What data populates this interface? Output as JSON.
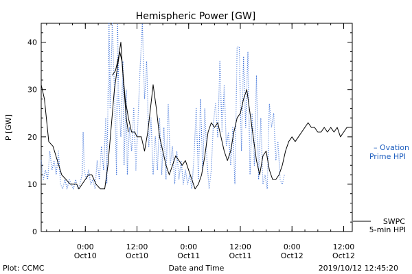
{
  "chart_data": {
    "type": "line",
    "title": "Hemispheric Power [GW]",
    "xlabel": "Date and Time",
    "ylabel": "P [GW]",
    "ylim": [
      0,
      44
    ],
    "xlim": [
      "2019-10-09T13:45",
      "2019-10-12T14:00"
    ],
    "yticks": [
      0,
      10,
      20,
      30,
      40
    ],
    "xticks": [
      {
        "t": "2019-10-10T00:00",
        "line1": "0:00",
        "line2": "Oct10"
      },
      {
        "t": "2019-10-10T12:00",
        "line1": "12:00",
        "line2": "Oct10"
      },
      {
        "t": "2019-10-11T00:00",
        "line1": "0:00",
        "line2": "Oct11"
      },
      {
        "t": "2019-10-11T12:00",
        "line1": "12:00",
        "line2": "Oct11"
      },
      {
        "t": "2019-10-12T00:00",
        "line1": "0:00",
        "line2": "Oct12"
      },
      {
        "t": "2019-10-12T12:00",
        "line1": "12:00",
        "line2": "Oct12"
      }
    ],
    "grid": false,
    "legend_position": "right",
    "series": [
      {
        "name": "SWPC 5-min HPI",
        "color": "#000000",
        "style": "solid",
        "points": [
          [
            "2019-10-09T13:45",
            31
          ],
          [
            "2019-10-09T14:30",
            28
          ],
          [
            "2019-10-09T15:30",
            19
          ],
          [
            "2019-10-09T16:30",
            18
          ],
          [
            "2019-10-09T17:30",
            15
          ],
          [
            "2019-10-09T18:30",
            12
          ],
          [
            "2019-10-09T19:30",
            11
          ],
          [
            "2019-10-09T20:30",
            10
          ],
          [
            "2019-10-09T22:00",
            10
          ],
          [
            "2019-10-09T22:30",
            9
          ],
          [
            "2019-10-09T23:15",
            10
          ],
          [
            "2019-10-10T00:00",
            11
          ],
          [
            "2019-10-10T00:45",
            12
          ],
          [
            "2019-10-10T01:30",
            12
          ],
          [
            "2019-10-10T02:30",
            10
          ],
          [
            "2019-10-10T03:30",
            9
          ],
          [
            "2019-10-10T04:30",
            9
          ],
          [
            "2019-10-10T05:15",
            14
          ],
          [
            "2019-10-10T06:00",
            22
          ],
          [
            "2019-10-10T06:45",
            30
          ],
          [
            "2019-10-10T07:30",
            35
          ],
          [
            "2019-10-10T08:00",
            38
          ],
          [
            "2019-10-10T08:30",
            36
          ],
          [
            "2019-10-10T09:15",
            28
          ],
          [
            "2019-10-10T10:00",
            24
          ],
          [
            "2019-10-10T10:45",
            21
          ],
          [
            "2019-10-10T11:30",
            21
          ],
          [
            "2019-10-10T12:00",
            20
          ],
          [
            "2019-10-10T13:00",
            20
          ],
          [
            "2019-10-10T13:45",
            17
          ],
          [
            "2019-10-10T14:30",
            21
          ],
          [
            "2019-10-10T15:15",
            27
          ],
          [
            "2019-10-10T15:45",
            31
          ],
          [
            "2019-10-10T16:30",
            26
          ],
          [
            "2019-10-10T17:15",
            20
          ],
          [
            "2019-10-10T18:00",
            17
          ],
          [
            "2019-10-10T18:45",
            14
          ],
          [
            "2019-10-10T19:30",
            12
          ],
          [
            "2019-10-10T20:15",
            14
          ],
          [
            "2019-10-10T21:00",
            16
          ],
          [
            "2019-10-10T21:45",
            15
          ],
          [
            "2019-10-10T22:30",
            14
          ],
          [
            "2019-10-10T23:15",
            15
          ],
          [
            "2019-10-11T00:00",
            13
          ],
          [
            "2019-10-11T00:45",
            11
          ],
          [
            "2019-10-11T01:30",
            9
          ],
          [
            "2019-10-11T02:15",
            10
          ],
          [
            "2019-10-11T03:00",
            12
          ],
          [
            "2019-10-11T03:45",
            16
          ],
          [
            "2019-10-11T04:30",
            21
          ],
          [
            "2019-10-11T05:15",
            23
          ],
          [
            "2019-10-11T06:00",
            22
          ],
          [
            "2019-10-11T06:45",
            23
          ],
          [
            "2019-10-11T07:30",
            20
          ],
          [
            "2019-10-11T08:15",
            17
          ],
          [
            "2019-10-11T09:00",
            15
          ],
          [
            "2019-10-11T09:45",
            17
          ],
          [
            "2019-10-11T10:30",
            21
          ],
          [
            "2019-10-11T11:15",
            24
          ],
          [
            "2019-10-11T12:00",
            25
          ],
          [
            "2019-10-11T12:45",
            28
          ],
          [
            "2019-10-11T13:30",
            30
          ],
          [
            "2019-10-11T14:15",
            25
          ],
          [
            "2019-10-11T15:00",
            20
          ],
          [
            "2019-10-11T15:45",
            15
          ],
          [
            "2019-10-11T16:30",
            12
          ],
          [
            "2019-10-11T17:15",
            16
          ],
          [
            "2019-10-11T18:00",
            17
          ],
          [
            "2019-10-11T18:45",
            13
          ],
          [
            "2019-10-11T19:30",
            11
          ],
          [
            "2019-10-11T20:15",
            11
          ],
          [
            "2019-10-11T21:00",
            12
          ],
          [
            "2019-10-11T21:45",
            14
          ],
          [
            "2019-10-11T22:30",
            17
          ],
          [
            "2019-10-11T23:15",
            19
          ],
          [
            "2019-10-12T00:00",
            20
          ],
          [
            "2019-10-12T00:45",
            19
          ],
          [
            "2019-10-12T01:30",
            20
          ],
          [
            "2019-10-12T02:15",
            21
          ],
          [
            "2019-10-12T03:00",
            22
          ],
          [
            "2019-10-12T03:45",
            23
          ],
          [
            "2019-10-12T04:30",
            22
          ],
          [
            "2019-10-12T05:15",
            22
          ],
          [
            "2019-10-12T06:00",
            21
          ],
          [
            "2019-10-12T06:45",
            21
          ],
          [
            "2019-10-12T07:30",
            22
          ],
          [
            "2019-10-12T08:15",
            21
          ],
          [
            "2019-10-12T09:00",
            22
          ],
          [
            "2019-10-12T09:45",
            21
          ],
          [
            "2019-10-12T10:30",
            22
          ],
          [
            "2019-10-12T11:15",
            20
          ],
          [
            "2019-10-12T12:00",
            21
          ],
          [
            "2019-10-12T12:45",
            22
          ],
          [
            "2019-10-12T13:30",
            22
          ]
        ]
      },
      {
        "name": "SWPC 5-min HPI (overlap segment)",
        "color": "#000000",
        "style": "solid",
        "points": [
          [
            "2019-10-10T06:15",
            33
          ],
          [
            "2019-10-10T07:00",
            34
          ],
          [
            "2019-10-10T07:45",
            37
          ],
          [
            "2019-10-10T08:15",
            40
          ],
          [
            "2019-10-10T08:45",
            33
          ],
          [
            "2019-10-10T09:30",
            24
          ],
          [
            "2019-10-10T10:00",
            21
          ]
        ]
      },
      {
        "name": "Ovation Prime HPI",
        "color": "#3a6fd8",
        "style": "dotted",
        "points": [
          [
            "2019-10-09T13:45",
            15
          ],
          [
            "2019-10-09T14:15",
            11
          ],
          [
            "2019-10-09T14:45",
            13
          ],
          [
            "2019-10-09T15:15",
            11
          ],
          [
            "2019-10-09T15:45",
            17
          ],
          [
            "2019-10-09T16:15",
            13
          ],
          [
            "2019-10-09T16:45",
            15
          ],
          [
            "2019-10-09T17:15",
            12
          ],
          [
            "2019-10-09T17:45",
            17
          ],
          [
            "2019-10-09T18:15",
            10
          ],
          [
            "2019-10-09T18:45",
            9
          ],
          [
            "2019-10-09T19:15",
            11
          ],
          [
            "2019-10-09T19:45",
            9
          ],
          [
            "2019-10-09T20:15",
            11
          ],
          [
            "2019-10-09T20:45",
            10
          ],
          [
            "2019-10-09T21:15",
            9
          ],
          [
            "2019-10-09T21:45",
            11
          ],
          [
            "2019-10-09T22:15",
            9
          ],
          [
            "2019-10-09T22:45",
            10
          ],
          [
            "2019-10-09T23:15",
            12
          ],
          [
            "2019-10-09T23:30",
            21
          ],
          [
            "2019-10-09T23:45",
            13
          ],
          [
            "2019-10-10T00:15",
            11
          ],
          [
            "2019-10-10T00:45",
            13
          ],
          [
            "2019-10-10T01:15",
            10
          ],
          [
            "2019-10-10T01:45",
            11
          ],
          [
            "2019-10-10T02:15",
            9
          ],
          [
            "2019-10-10T02:45",
            15
          ],
          [
            "2019-10-10T03:15",
            11
          ],
          [
            "2019-10-10T03:45",
            18
          ],
          [
            "2019-10-10T04:15",
            13
          ],
          [
            "2019-10-10T04:45",
            24
          ],
          [
            "2019-10-10T05:00",
            10
          ],
          [
            "2019-10-10T05:30",
            44
          ],
          [
            "2019-10-10T05:45",
            26
          ],
          [
            "2019-10-10T06:15",
            44
          ],
          [
            "2019-10-10T06:45",
            30
          ],
          [
            "2019-10-10T07:15",
            12
          ],
          [
            "2019-10-10T07:30",
            44
          ],
          [
            "2019-10-10T07:45",
            28
          ],
          [
            "2019-10-10T08:15",
            20
          ],
          [
            "2019-10-10T08:45",
            36
          ],
          [
            "2019-10-10T09:00",
            14
          ],
          [
            "2019-10-10T09:30",
            30
          ],
          [
            "2019-10-10T09:45",
            12
          ],
          [
            "2019-10-10T10:15",
            22
          ],
          [
            "2019-10-10T10:45",
            17
          ],
          [
            "2019-10-10T11:15",
            26
          ],
          [
            "2019-10-10T11:45",
            13
          ],
          [
            "2019-10-10T12:15",
            24
          ],
          [
            "2019-10-10T12:45",
            35
          ],
          [
            "2019-10-10T13:15",
            44
          ],
          [
            "2019-10-10T13:45",
            28
          ],
          [
            "2019-10-10T14:15",
            36
          ],
          [
            "2019-10-10T14:45",
            18
          ],
          [
            "2019-10-10T15:15",
            24
          ],
          [
            "2019-10-10T15:45",
            12
          ],
          [
            "2019-10-10T16:15",
            20
          ],
          [
            "2019-10-10T16:45",
            13
          ],
          [
            "2019-10-10T17:15",
            24
          ],
          [
            "2019-10-10T17:45",
            12
          ],
          [
            "2019-10-10T18:15",
            22
          ],
          [
            "2019-10-10T18:45",
            11
          ],
          [
            "2019-10-10T19:15",
            27
          ],
          [
            "2019-10-10T19:45",
            14
          ],
          [
            "2019-10-10T20:15",
            18
          ],
          [
            "2019-10-10T20:45",
            10
          ],
          [
            "2019-10-10T21:15",
            17
          ],
          [
            "2019-10-10T21:45",
            11
          ],
          [
            "2019-10-10T22:15",
            15
          ],
          [
            "2019-10-10T22:45",
            10
          ],
          [
            "2019-10-10T23:15",
            13
          ],
          [
            "2019-10-10T23:45",
            10
          ],
          [
            "2019-10-11T00:15",
            12
          ],
          [
            "2019-10-11T00:45",
            9
          ],
          [
            "2019-10-11T01:15",
            16
          ],
          [
            "2019-10-11T01:45",
            26
          ],
          [
            "2019-10-11T02:15",
            11
          ],
          [
            "2019-10-11T02:45",
            28
          ],
          [
            "2019-10-11T03:15",
            13
          ],
          [
            "2019-10-11T03:45",
            26
          ],
          [
            "2019-10-11T04:15",
            15
          ],
          [
            "2019-10-11T04:45",
            9
          ],
          [
            "2019-10-11T05:15",
            13
          ],
          [
            "2019-10-11T05:45",
            23
          ],
          [
            "2019-10-11T06:15",
            27
          ],
          [
            "2019-10-11T06:45",
            20
          ],
          [
            "2019-10-11T07:15",
            36
          ],
          [
            "2019-10-11T07:45",
            21
          ],
          [
            "2019-10-11T08:15",
            31
          ],
          [
            "2019-10-11T08:45",
            18
          ],
          [
            "2019-10-11T09:15",
            21
          ],
          [
            "2019-10-11T09:45",
            14
          ],
          [
            "2019-10-11T10:15",
            22
          ],
          [
            "2019-10-11T10:45",
            10
          ],
          [
            "2019-10-11T11:15",
            39
          ],
          [
            "2019-10-11T11:45",
            39
          ],
          [
            "2019-10-11T12:15",
            17
          ],
          [
            "2019-10-11T12:45",
            37
          ],
          [
            "2019-10-11T13:15",
            22
          ],
          [
            "2019-10-11T13:45",
            38
          ],
          [
            "2019-10-11T14:15",
            12
          ],
          [
            "2019-10-11T14:45",
            25
          ],
          [
            "2019-10-11T15:15",
            14
          ],
          [
            "2019-10-11T15:45",
            33
          ],
          [
            "2019-10-11T16:15",
            11
          ],
          [
            "2019-10-11T16:45",
            24
          ],
          [
            "2019-10-11T17:15",
            10
          ],
          [
            "2019-10-11T17:45",
            12
          ],
          [
            "2019-10-11T18:15",
            9
          ],
          [
            "2019-10-11T18:45",
            27
          ],
          [
            "2019-10-11T19:15",
            22
          ],
          [
            "2019-10-11T19:45",
            25
          ],
          [
            "2019-10-11T20:15",
            15
          ],
          [
            "2019-10-11T20:45",
            19
          ],
          [
            "2019-10-11T21:15",
            11
          ],
          [
            "2019-10-11T21:45",
            10
          ],
          [
            "2019-10-11T22:15",
            12
          ]
        ]
      }
    ]
  },
  "legend": {
    "ovation": {
      "line1": "– Ovation",
      "line2": "Prime HPI"
    },
    "swpc": {
      "line1": "SWPC",
      "line2": "5-min HPI"
    }
  },
  "footer": {
    "left": "Plot: CCMC",
    "center": "Date and Time",
    "right": "2019/10/12 12:45:20"
  }
}
